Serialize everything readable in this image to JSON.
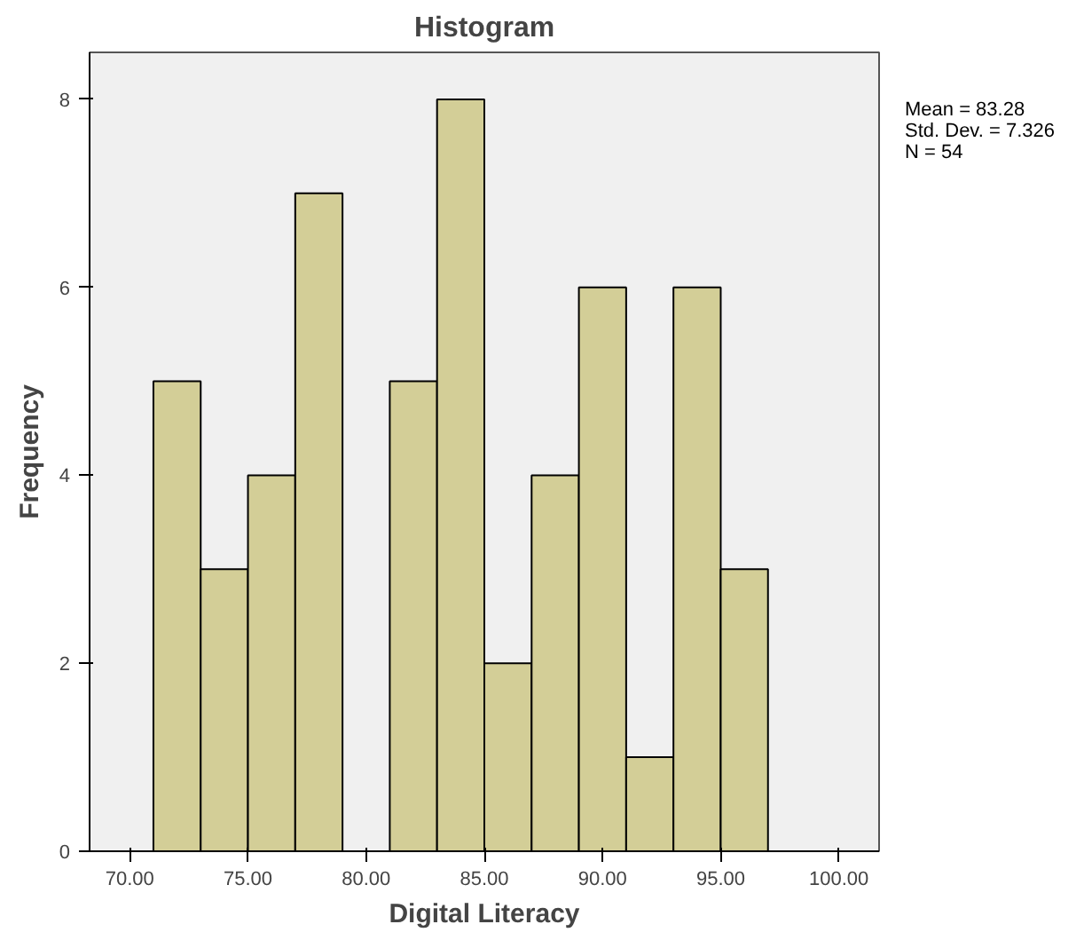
{
  "chart_data": {
    "type": "histogram",
    "title": "Histogram",
    "xlabel": "Digital Literacy",
    "ylabel": "Frequency",
    "bins": [
      71,
      73,
      75,
      77,
      79,
      81,
      83,
      85,
      87,
      89,
      91,
      93,
      95,
      97
    ],
    "values": [
      5,
      3,
      4,
      7,
      0,
      5,
      8,
      2,
      4,
      6,
      1,
      6,
      3
    ],
    "color": "#d3ce97",
    "xlim": [
      68.3,
      101.7
    ],
    "ylim": [
      0,
      8.5
    ],
    "xticks": [
      {
        "value": 70,
        "label": "70.00"
      },
      {
        "value": 75,
        "label": "75.00"
      },
      {
        "value": 80,
        "label": "80.00"
      },
      {
        "value": 85,
        "label": "85.00"
      },
      {
        "value": 90,
        "label": "90.00"
      },
      {
        "value": 95,
        "label": "95.00"
      },
      {
        "value": 100,
        "label": "100.00"
      }
    ],
    "yticks": [
      0,
      2,
      4,
      6,
      8
    ],
    "grid": false,
    "annotations": [
      "Mean = 83.28",
      "Std. Dev. = 7.326",
      "N = 54"
    ]
  }
}
